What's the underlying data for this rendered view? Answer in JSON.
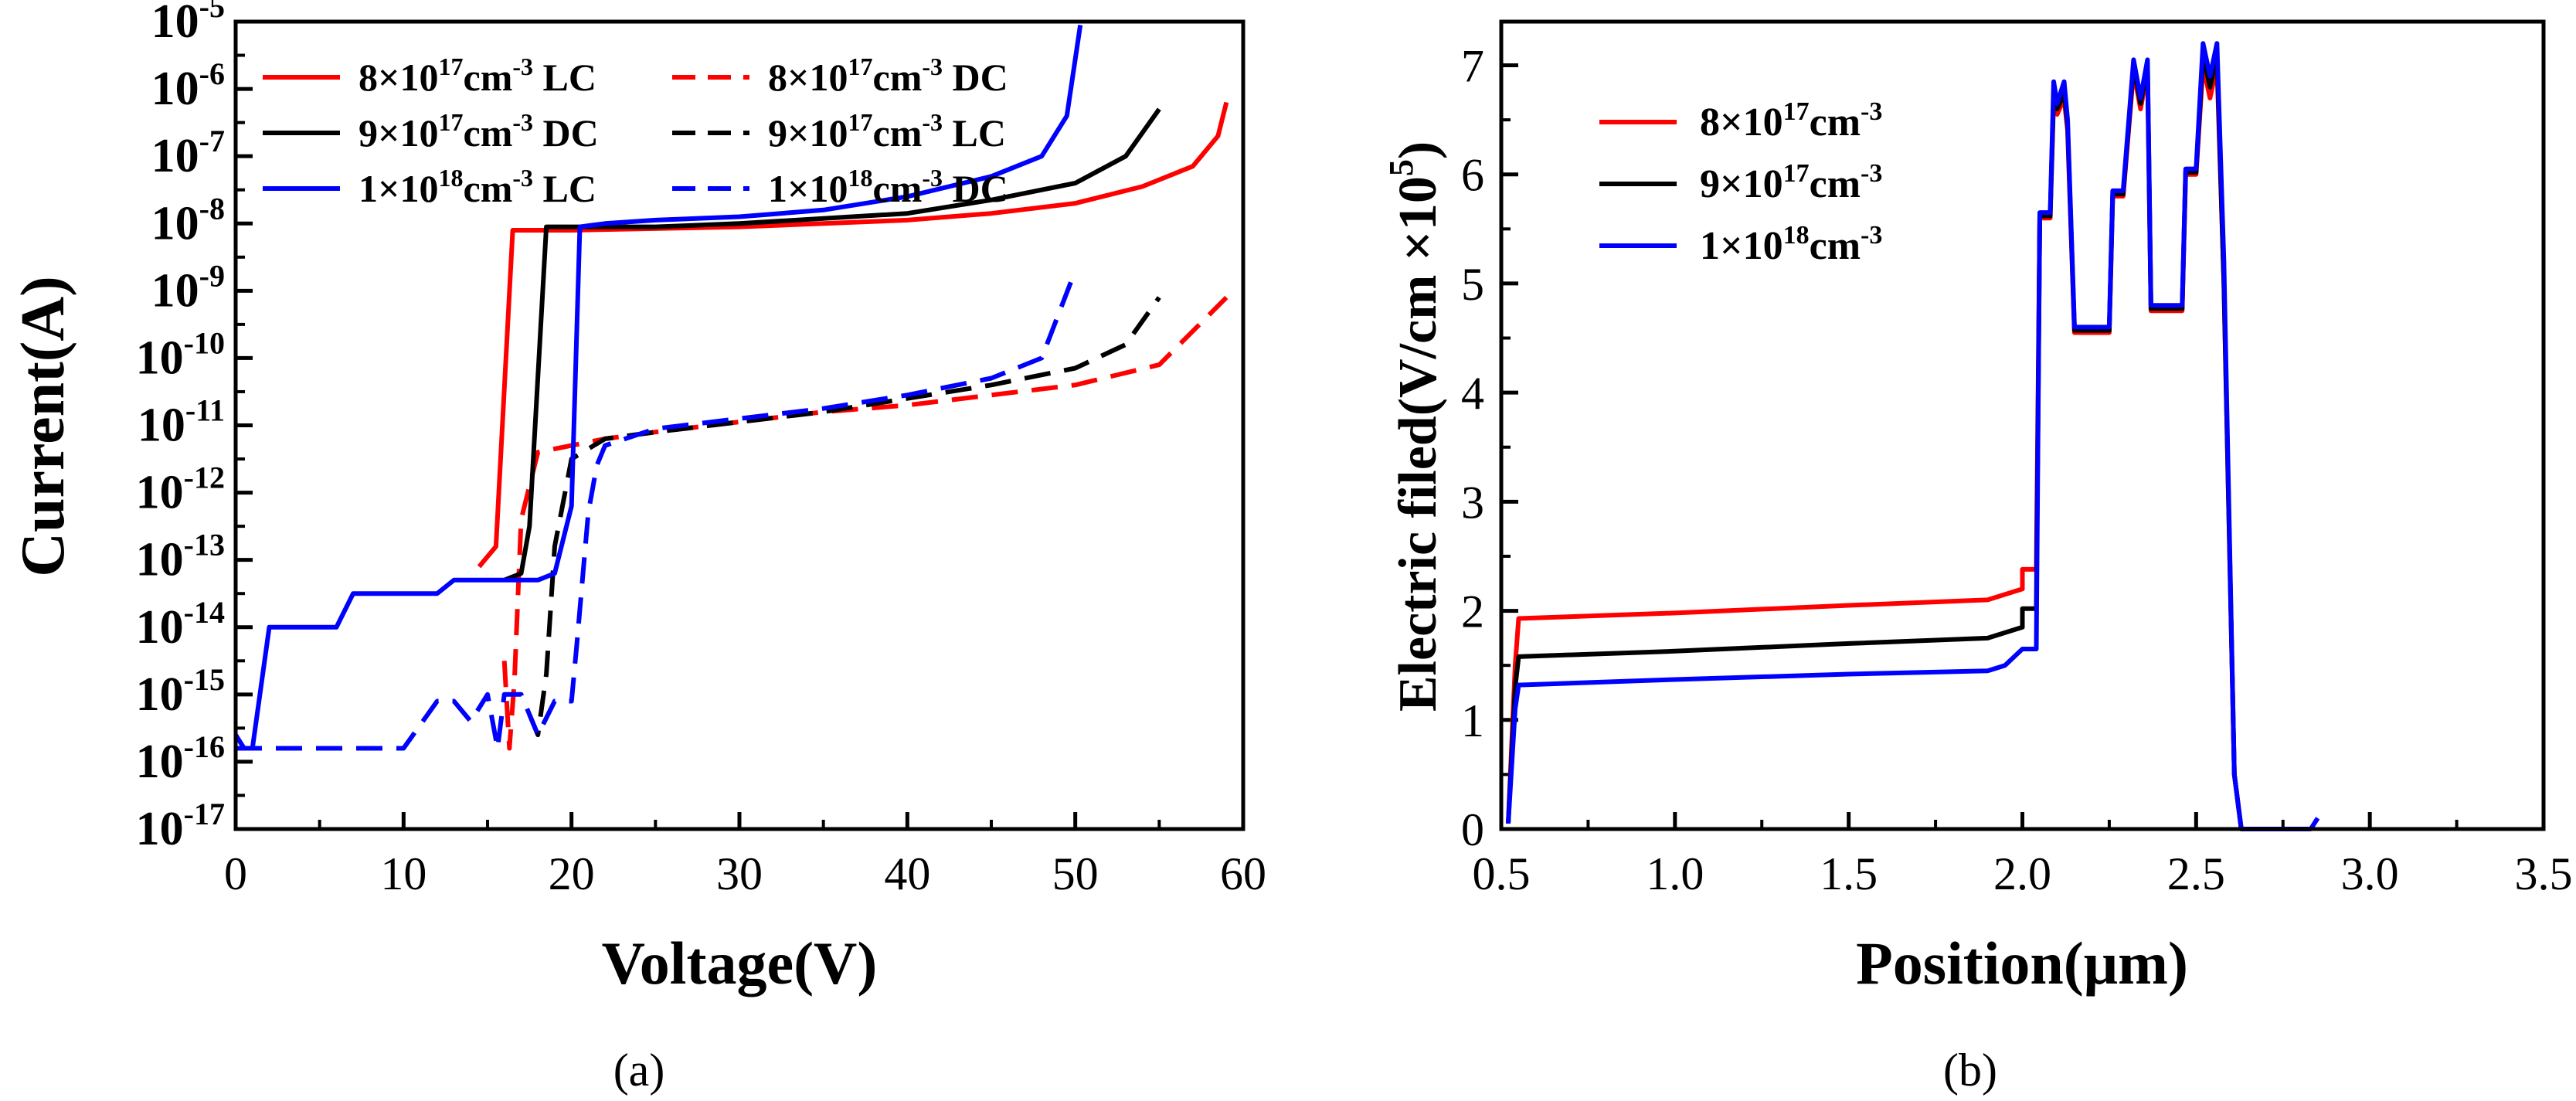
{
  "chart_data": [
    {
      "panel": "(a)",
      "type": "line",
      "yscale": "log",
      "xlabel": "Voltage(V)",
      "ylabel": "Current(A)",
      "xlim": [
        0,
        60
      ],
      "ylim_exponent": [
        -17,
        -5
      ],
      "xticks": [
        0,
        10,
        20,
        30,
        40,
        50,
        60
      ],
      "yticks_exponent": [
        -17,
        -16,
        -15,
        -14,
        -13,
        -12,
        -11,
        -10,
        -9,
        -8,
        -7,
        -6,
        -5
      ],
      "ytick_base": "10",
      "legend": {
        "position": "top-left",
        "columns": 2
      },
      "series": [
        {
          "name_prefix": "8×10",
          "name_sup": "17",
          "name_unit": "cm",
          "name_unit_sup": "-3",
          "name_suffix": " LC",
          "color": "#ff0000",
          "dash": false,
          "legend_col": 0,
          "legend_row": 0,
          "x": [
            14.5,
            15.5,
            16.5,
            17,
            20,
            30,
            40,
            45,
            50,
            54,
            57,
            58.5,
            59
          ],
          "log10y": [
            -13.1,
            -12.8,
            -8.1,
            -8.1,
            -8.1,
            -8.05,
            -7.95,
            -7.85,
            -7.7,
            -7.45,
            -7.15,
            -6.7,
            -6.2
          ]
        },
        {
          "name_prefix": "8×10",
          "name_sup": "17",
          "name_unit": "cm",
          "name_unit_sup": "-3",
          "name_suffix": " DC",
          "color": "#ff0000",
          "dash": true,
          "legend_col": 1,
          "legend_row": 0,
          "x": [
            16,
            16.3,
            16.6,
            17,
            18,
            20,
            22,
            25,
            30,
            35,
            40,
            45,
            50,
            55,
            59
          ],
          "log10y": [
            -14.5,
            -15.8,
            -14.8,
            -12.4,
            -11.4,
            -11.3,
            -11.2,
            -11.1,
            -10.95,
            -10.8,
            -10.7,
            -10.55,
            -10.4,
            -10.1,
            -9.1
          ]
        },
        {
          "name_prefix": "9×10",
          "name_sup": "17",
          "name_unit": "cm",
          "name_unit_sup": "-3",
          "name_suffix": " DC",
          "color": "#000000",
          "dash": false,
          "legend_col": 0,
          "legend_row": 1,
          "x": [
            16,
            17,
            17.5,
            18.5,
            20,
            25,
            30,
            40,
            45,
            50,
            53,
            55
          ],
          "log10y": [
            -13.3,
            -13.2,
            -12.5,
            -8.05,
            -8.05,
            -8.05,
            -8.0,
            -7.85,
            -7.65,
            -7.4,
            -7.0,
            -6.3
          ]
        },
        {
          "name_prefix": "9×10",
          "name_sup": "17",
          "name_unit": "cm",
          "name_unit_sup": "-3",
          "name_suffix": " LC",
          "color": "#000000",
          "dash": true,
          "legend_col": 1,
          "legend_row": 1,
          "x": [
            17.5,
            18,
            18.5,
            19,
            20,
            22,
            25,
            30,
            35,
            40,
            45,
            50,
            53,
            55
          ],
          "log10y": [
            -15.3,
            -15.6,
            -14.7,
            -12.8,
            -11.5,
            -11.2,
            -11.1,
            -10.95,
            -10.8,
            -10.6,
            -10.4,
            -10.15,
            -9.8,
            -9.1
          ]
        },
        {
          "name_prefix": "1×10",
          "name_sup": "18",
          "name_unit": "cm",
          "name_unit_sup": "-3",
          "name_suffix": " LC",
          "color": "#0000ff",
          "dash": false,
          "legend_col": 0,
          "legend_row": 2,
          "x": [
            0,
            0.5,
            1,
            2,
            3,
            6,
            7,
            8,
            12,
            13,
            15,
            18,
            19,
            20,
            20.5,
            22,
            25,
            30,
            35,
            40,
            45,
            48,
            49.5,
            50.3
          ],
          "log10y": [
            -15.6,
            -15.8,
            -15.8,
            -14.0,
            -14.0,
            -14.0,
            -13.5,
            -13.5,
            -13.5,
            -13.3,
            -13.3,
            -13.3,
            -13.2,
            -12.2,
            -8.05,
            -8.0,
            -7.95,
            -7.9,
            -7.8,
            -7.6,
            -7.3,
            -7.0,
            -6.4,
            -5.05
          ]
        },
        {
          "name_prefix": "1×10",
          "name_sup": "18",
          "name_unit": "cm",
          "name_unit_sup": "-3",
          "name_suffix": " DC",
          "color": "#0000ff",
          "dash": true,
          "legend_col": 1,
          "legend_row": 2,
          "x": [
            0,
            1,
            3,
            5,
            7,
            10,
            12,
            13,
            14,
            15,
            15.6,
            16,
            17,
            18,
            19,
            20,
            20.3,
            21,
            21.5,
            22,
            25,
            30,
            35,
            40,
            45,
            48,
            50
          ],
          "log10y": [
            -15.8,
            -15.8,
            -15.8,
            -15.8,
            -15.8,
            -15.8,
            -15.1,
            -15.1,
            -15.4,
            -15.0,
            -15.8,
            -15.0,
            -15.0,
            -15.6,
            -15.1,
            -15.1,
            -14.3,
            -12.3,
            -11.6,
            -11.3,
            -11.05,
            -10.9,
            -10.75,
            -10.55,
            -10.3,
            -10.0,
            -8.7
          ]
        }
      ]
    },
    {
      "panel": "(b)",
      "type": "line",
      "xlabel": "Position(μm)",
      "ylabel_main": "Electric filed(V/cm ×10",
      "ylabel_sup": "5",
      "ylabel_end": ")",
      "xlim": [
        0.5,
        3.5
      ],
      "ylim": [
        0,
        7.4
      ],
      "xticks": [
        "0.5",
        "1.0",
        "1.5",
        "2.0",
        "2.5",
        "3.0",
        "3.5"
      ],
      "yticks": [
        0,
        1,
        2,
        3,
        4,
        5,
        6,
        7
      ],
      "legend": {
        "position": "top-left",
        "columns": 1
      },
      "series": [
        {
          "name_prefix": "8×10",
          "name_sup": "17",
          "name_unit": "cm",
          "name_unit_sup": "-3",
          "color": "#ff0000",
          "x": [
            0.52,
            0.54,
            0.55,
            1.0,
            1.5,
            1.9,
            2.0,
            2.0,
            2.04,
            2.05,
            2.08,
            2.09,
            2.1,
            2.12,
            2.13,
            2.15,
            2.16,
            2.25,
            2.26,
            2.29,
            2.32,
            2.34,
            2.36,
            2.37,
            2.46,
            2.47,
            2.5,
            2.52,
            2.54,
            2.56,
            2.58,
            2.61,
            2.63
          ],
          "y": [
            0.05,
            1.5,
            1.93,
            1.98,
            2.05,
            2.1,
            2.2,
            2.38,
            2.38,
            5.6,
            5.6,
            6.7,
            6.55,
            6.7,
            6.4,
            4.55,
            4.55,
            4.55,
            5.8,
            5.8,
            6.95,
            6.6,
            6.95,
            4.75,
            4.75,
            6.0,
            6.0,
            7.0,
            6.7,
            7.0,
            5.0,
            0.5,
            0.0
          ]
        },
        {
          "name_prefix": "9×10",
          "name_sup": "17",
          "name_unit": "cm",
          "name_unit_sup": "-3",
          "color": "#000000",
          "x": [
            0.52,
            0.54,
            0.55,
            1.0,
            1.5,
            1.9,
            2.0,
            2.0,
            2.04,
            2.05,
            2.08,
            2.09,
            2.1,
            2.12,
            2.13,
            2.15,
            2.16,
            2.25,
            2.26,
            2.29,
            2.32,
            2.34,
            2.36,
            2.37,
            2.46,
            2.47,
            2.5,
            2.52,
            2.54,
            2.56,
            2.58,
            2.61,
            2.63
          ],
          "y": [
            0.05,
            1.3,
            1.58,
            1.63,
            1.7,
            1.75,
            1.85,
            2.02,
            2.02,
            5.62,
            5.62,
            6.75,
            6.6,
            6.75,
            6.45,
            4.57,
            4.57,
            4.57,
            5.82,
            5.82,
            7.0,
            6.65,
            7.0,
            4.77,
            4.77,
            6.02,
            6.02,
            7.1,
            6.8,
            7.1,
            5.0,
            0.5,
            0.0
          ]
        },
        {
          "name_prefix": "1×10",
          "name_sup": "18",
          "name_unit": "cm",
          "name_unit_sup": "-3",
          "color": "#0000ff",
          "x": [
            0.52,
            0.54,
            0.55,
            1.0,
            1.5,
            1.9,
            1.95,
            2.0,
            2.04,
            2.05,
            2.08,
            2.09,
            2.1,
            2.12,
            2.13,
            2.15,
            2.16,
            2.25,
            2.26,
            2.29,
            2.32,
            2.34,
            2.36,
            2.37,
            2.46,
            2.47,
            2.5,
            2.52,
            2.54,
            2.56,
            2.58,
            2.61,
            2.63,
            2.8,
            2.83,
            2.85
          ],
          "y": [
            0.05,
            1.1,
            1.32,
            1.37,
            1.42,
            1.45,
            1.5,
            1.65,
            1.65,
            5.65,
            5.65,
            6.85,
            6.65,
            6.85,
            6.5,
            4.6,
            4.6,
            4.6,
            5.85,
            5.85,
            7.05,
            6.7,
            7.05,
            4.8,
            4.8,
            6.05,
            6.05,
            7.2,
            6.9,
            7.2,
            5.2,
            0.5,
            0.0,
            0.0,
            0.0,
            0.1
          ]
        }
      ]
    }
  ]
}
